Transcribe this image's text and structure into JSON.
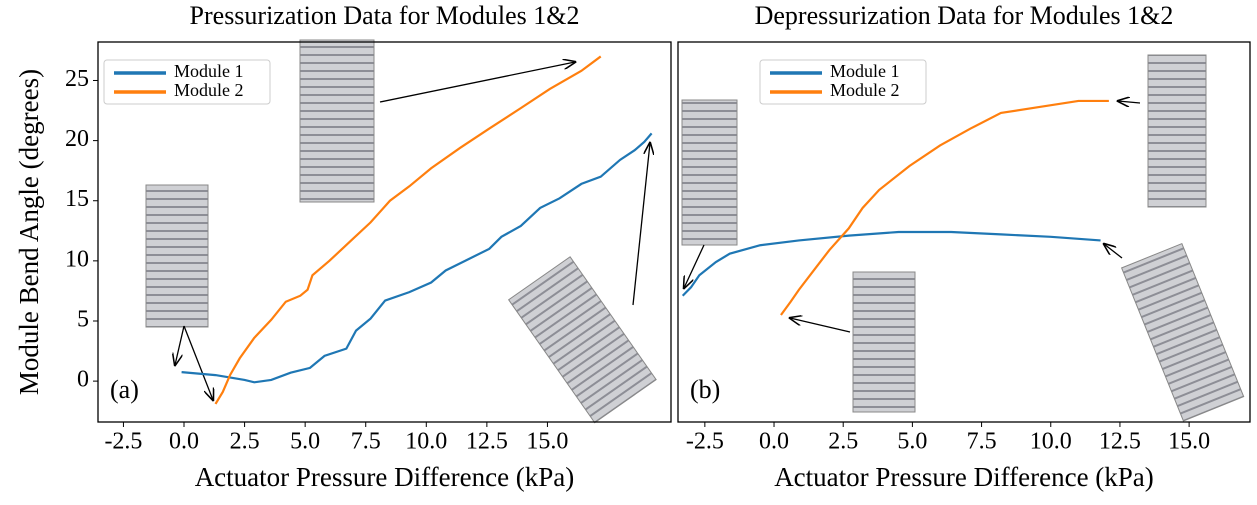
{
  "chart_data": [
    {
      "type": "line",
      "title": "Pressurization Data for Modules 1&2",
      "xlabel": "Actuator Pressure Difference (kPa)",
      "ylabel": "Module Bend Angle (degrees)",
      "annotation": "(a)",
      "xlim": [
        -3.55,
        20.1
      ],
      "ylim": [
        -3.4,
        28.2
      ],
      "xticks": [
        -2.5,
        {
          "value": 0,
          "label": "0.0"
        },
        2.5,
        {
          "value": 5,
          "label": "5.0"
        },
        7.5,
        {
          "value": 10,
          "label": "10.0"
        },
        12.5,
        {
          "value": 15,
          "label": "15.0"
        }
      ],
      "yticks": [
        0,
        5,
        10,
        15,
        20,
        25
      ],
      "legend": "upper-left",
      "series": [
        {
          "name": "Module 1",
          "color": "#1f77b4",
          "x": [
            -0.1,
            1.3,
            2.5,
            2.9,
            3.6,
            4.4,
            5.2,
            5.8,
            6.7,
            7.1,
            7.7,
            8.3,
            9.3,
            10.2,
            10.8,
            11.6,
            12.6,
            13.1,
            13.9,
            14.7,
            15.5,
            16.4,
            17.2,
            18.0,
            18.6,
            19.0,
            19.3
          ],
          "values": [
            0.75,
            0.5,
            0.1,
            -0.1,
            0.1,
            0.7,
            1.1,
            2.1,
            2.7,
            4.2,
            5.2,
            6.7,
            7.4,
            8.2,
            9.2,
            10.0,
            11.0,
            12.0,
            12.9,
            14.4,
            15.2,
            16.4,
            17.0,
            18.4,
            19.2,
            19.9,
            20.6
          ]
        },
        {
          "name": "Module 2",
          "color": "#ff7f0e",
          "x": [
            1.3,
            1.6,
            1.9,
            2.3,
            2.9,
            3.6,
            4.2,
            4.8,
            5.1,
            5.3,
            6.0,
            6.9,
            7.7,
            8.5,
            9.3,
            10.2,
            11.4,
            12.6,
            13.9,
            15.1,
            16.4,
            17.2
          ],
          "values": [
            -1.9,
            -0.9,
            0.5,
            1.9,
            3.6,
            5.1,
            6.6,
            7.1,
            7.6,
            8.8,
            10.0,
            11.7,
            13.2,
            15.0,
            16.2,
            17.7,
            19.4,
            21.0,
            22.7,
            24.3,
            25.8,
            27.0
          ]
        }
      ]
    },
    {
      "type": "line",
      "title": "Depressurization Data for Modules 1&2",
      "xlabel": "Actuator Pressure Difference (kPa)",
      "annotation": "(b)",
      "xlim": [
        -3.47,
        17.2
      ],
      "ylim": [
        -3.4,
        28.2
      ],
      "xticks": [
        -2.5,
        {
          "value": 0,
          "label": "0.0"
        },
        2.5,
        {
          "value": 5,
          "label": "5.0"
        },
        7.5,
        {
          "value": 10,
          "label": "10.0"
        },
        12.5,
        {
          "value": 15,
          "label": "15.0"
        }
      ],
      "legend": "upper-center",
      "series": [
        {
          "name": "Module 1",
          "color": "#1f77b4",
          "x": [
            -3.3,
            -3.0,
            -2.7,
            -2.1,
            -1.6,
            -0.5,
            0.9,
            2.7,
            4.5,
            6.4,
            8.2,
            10.0,
            11.8
          ],
          "values": [
            7.1,
            7.8,
            8.8,
            9.9,
            10.6,
            11.3,
            11.7,
            12.1,
            12.4,
            12.4,
            12.2,
            12.0,
            11.7
          ]
        },
        {
          "name": "Module 2",
          "color": "#ff7f0e",
          "x": [
            0.25,
            0.6,
            0.9,
            1.5,
            2.0,
            2.7,
            3.2,
            3.8,
            4.9,
            6.0,
            7.1,
            8.2,
            9.6,
            11.0,
            12.1
          ],
          "values": [
            5.5,
            6.6,
            7.6,
            9.4,
            10.9,
            12.7,
            14.4,
            15.9,
            17.9,
            19.6,
            21.0,
            22.3,
            22.8,
            23.3,
            23.3
          ]
        }
      ]
    }
  ]
}
